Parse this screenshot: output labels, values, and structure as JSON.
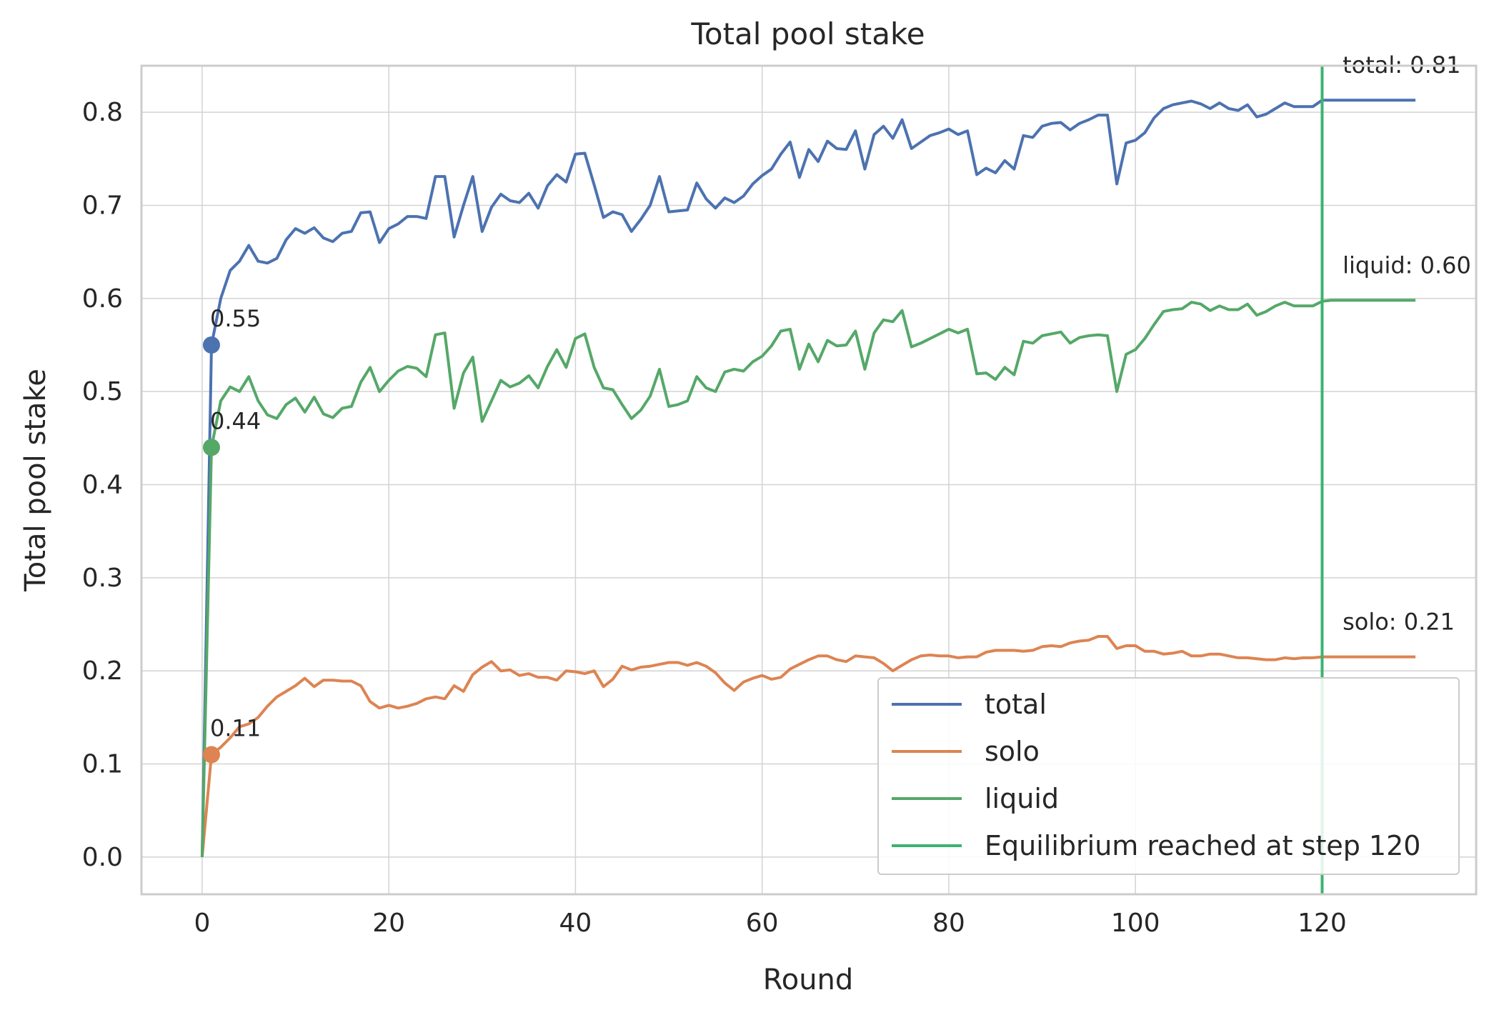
{
  "chart_data": {
    "type": "line",
    "title": "Total pool stake",
    "xlabel": "Round",
    "ylabel": "Total pool stake",
    "xlim": [
      -6.5,
      136.5
    ],
    "ylim": [
      -0.04,
      0.85
    ],
    "xticks": [
      0,
      20,
      40,
      60,
      80,
      100,
      120
    ],
    "yticks": [
      0.0,
      0.1,
      0.2,
      0.3,
      0.4,
      0.5,
      0.6,
      0.7,
      0.8
    ],
    "xtick_labels": [
      "0",
      "20",
      "40",
      "60",
      "80",
      "100",
      "120"
    ],
    "ytick_labels": [
      "0.0",
      "0.1",
      "0.2",
      "0.3",
      "0.4",
      "0.5",
      "0.6",
      "0.7",
      "0.8"
    ],
    "grid": true,
    "legend_position": "lower right",
    "x": [
      0,
      1,
      2,
      3,
      4,
      5,
      6,
      7,
      8,
      9,
      10,
      11,
      12,
      13,
      14,
      15,
      16,
      17,
      18,
      19,
      20,
      21,
      22,
      23,
      24,
      25,
      26,
      27,
      28,
      29,
      30,
      31,
      32,
      33,
      34,
      35,
      36,
      37,
      38,
      39,
      40,
      41,
      42,
      43,
      44,
      45,
      46,
      47,
      48,
      49,
      50,
      51,
      52,
      53,
      54,
      55,
      56,
      57,
      58,
      59,
      60,
      61,
      62,
      63,
      64,
      65,
      66,
      67,
      68,
      69,
      70,
      71,
      72,
      73,
      74,
      75,
      76,
      77,
      78,
      79,
      80,
      81,
      82,
      83,
      84,
      85,
      86,
      87,
      88,
      89,
      90,
      91,
      92,
      93,
      94,
      95,
      96,
      97,
      98,
      99,
      100,
      101,
      102,
      103,
      104,
      105,
      106,
      107,
      108,
      109,
      110,
      111,
      112,
      113,
      114,
      115,
      116,
      117,
      118,
      119,
      120,
      121,
      122,
      123,
      124,
      125,
      126,
      127,
      128,
      129,
      130
    ],
    "series": [
      {
        "name": "total",
        "color": "#4c72b0",
        "values": [
          0.0,
          0.55,
          0.6,
          0.63,
          0.64,
          0.657,
          0.64,
          0.638,
          0.643,
          0.663,
          0.675,
          0.67,
          0.676,
          0.665,
          0.661,
          0.67,
          0.672,
          0.692,
          0.693,
          0.66,
          0.675,
          0.68,
          0.688,
          0.688,
          0.686,
          0.731,
          0.731,
          0.666,
          0.7,
          0.731,
          0.672,
          0.698,
          0.712,
          0.705,
          0.703,
          0.713,
          0.697,
          0.721,
          0.733,
          0.725,
          0.755,
          0.756,
          0.722,
          0.687,
          0.693,
          0.69,
          0.672,
          0.685,
          0.7,
          0.731,
          0.693,
          0.694,
          0.695,
          0.724,
          0.707,
          0.697,
          0.708,
          0.703,
          0.71,
          0.723,
          0.732,
          0.739,
          0.755,
          0.768,
          0.73,
          0.76,
          0.747,
          0.769,
          0.761,
          0.76,
          0.78,
          0.739,
          0.776,
          0.785,
          0.772,
          0.792,
          0.761,
          0.768,
          0.775,
          0.778,
          0.782,
          0.776,
          0.78,
          0.733,
          0.74,
          0.735,
          0.748,
          0.739,
          0.775,
          0.773,
          0.785,
          0.788,
          0.789,
          0.781,
          0.788,
          0.792,
          0.797,
          0.797,
          0.723,
          0.767,
          0.77,
          0.778,
          0.794,
          0.804,
          0.808,
          0.81,
          0.812,
          0.809,
          0.804,
          0.81,
          0.804,
          0.802,
          0.808,
          0.795,
          0.798,
          0.804,
          0.81,
          0.806,
          0.806,
          0.806,
          0.813,
          0.813,
          0.813,
          0.813,
          0.813,
          0.813,
          0.813,
          0.813,
          0.813,
          0.813,
          0.813
        ]
      },
      {
        "name": "solo",
        "color": "#dd8452",
        "values": [
          0.0,
          0.11,
          0.118,
          0.128,
          0.14,
          0.143,
          0.15,
          0.162,
          0.172,
          0.178,
          0.184,
          0.192,
          0.183,
          0.19,
          0.19,
          0.189,
          0.189,
          0.184,
          0.167,
          0.16,
          0.163,
          0.16,
          0.162,
          0.165,
          0.17,
          0.172,
          0.17,
          0.184,
          0.178,
          0.196,
          0.204,
          0.21,
          0.2,
          0.201,
          0.195,
          0.197,
          0.193,
          0.193,
          0.19,
          0.2,
          0.199,
          0.197,
          0.2,
          0.183,
          0.191,
          0.205,
          0.201,
          0.204,
          0.205,
          0.207,
          0.209,
          0.209,
          0.206,
          0.209,
          0.205,
          0.198,
          0.187,
          0.179,
          0.188,
          0.192,
          0.195,
          0.191,
          0.193,
          0.202,
          0.207,
          0.212,
          0.216,
          0.216,
          0.212,
          0.21,
          0.216,
          0.215,
          0.214,
          0.208,
          0.2,
          0.206,
          0.212,
          0.216,
          0.217,
          0.216,
          0.216,
          0.214,
          0.215,
          0.215,
          0.22,
          0.222,
          0.222,
          0.222,
          0.221,
          0.222,
          0.226,
          0.227,
          0.226,
          0.23,
          0.232,
          0.233,
          0.237,
          0.237,
          0.224,
          0.227,
          0.227,
          0.221,
          0.221,
          0.218,
          0.219,
          0.221,
          0.216,
          0.216,
          0.218,
          0.218,
          0.216,
          0.214,
          0.214,
          0.213,
          0.212,
          0.212,
          0.214,
          0.213,
          0.214,
          0.214,
          0.215,
          0.215,
          0.215,
          0.215,
          0.215,
          0.215,
          0.215,
          0.215,
          0.215,
          0.215,
          0.215
        ]
      },
      {
        "name": "liquid",
        "color": "#55a868",
        "values": [
          0.0,
          0.44,
          0.49,
          0.505,
          0.5,
          0.516,
          0.49,
          0.475,
          0.471,
          0.486,
          0.493,
          0.478,
          0.494,
          0.476,
          0.472,
          0.482,
          0.484,
          0.51,
          0.526,
          0.5,
          0.512,
          0.522,
          0.527,
          0.525,
          0.516,
          0.561,
          0.563,
          0.482,
          0.52,
          0.537,
          0.468,
          0.49,
          0.512,
          0.505,
          0.509,
          0.517,
          0.504,
          0.527,
          0.545,
          0.526,
          0.557,
          0.562,
          0.526,
          0.504,
          0.502,
          0.486,
          0.471,
          0.48,
          0.495,
          0.524,
          0.484,
          0.486,
          0.49,
          0.516,
          0.504,
          0.5,
          0.521,
          0.524,
          0.522,
          0.532,
          0.538,
          0.549,
          0.565,
          0.567,
          0.524,
          0.551,
          0.532,
          0.555,
          0.549,
          0.55,
          0.565,
          0.524,
          0.563,
          0.577,
          0.575,
          0.587,
          0.548,
          0.552,
          0.557,
          0.562,
          0.567,
          0.563,
          0.567,
          0.519,
          0.52,
          0.513,
          0.526,
          0.518,
          0.554,
          0.552,
          0.56,
          0.562,
          0.564,
          0.552,
          0.558,
          0.56,
          0.561,
          0.56,
          0.5,
          0.54,
          0.545,
          0.557,
          0.572,
          0.586,
          0.588,
          0.589,
          0.596,
          0.594,
          0.587,
          0.592,
          0.588,
          0.588,
          0.594,
          0.582,
          0.586,
          0.592,
          0.596,
          0.592,
          0.592,
          0.592,
          0.597,
          0.598,
          0.598,
          0.598,
          0.598,
          0.598,
          0.598,
          0.598,
          0.598,
          0.598,
          0.598
        ]
      }
    ],
    "markers": [
      {
        "series": "total",
        "x": 1,
        "y": 0.55,
        "label": "0.55"
      },
      {
        "series": "liquid",
        "x": 1,
        "y": 0.44,
        "label": "0.44"
      },
      {
        "series": "solo",
        "x": 1,
        "y": 0.11,
        "label": "0.11"
      }
    ],
    "end_labels": [
      {
        "series": "total",
        "label": "total: 0.81"
      },
      {
        "series": "liquid",
        "label": "liquid: 0.60"
      },
      {
        "series": "solo",
        "label": "solo: 0.21"
      }
    ],
    "vline": {
      "x": 120,
      "color": "#3cb371",
      "label": "Equilibrium reached at step 120"
    }
  }
}
